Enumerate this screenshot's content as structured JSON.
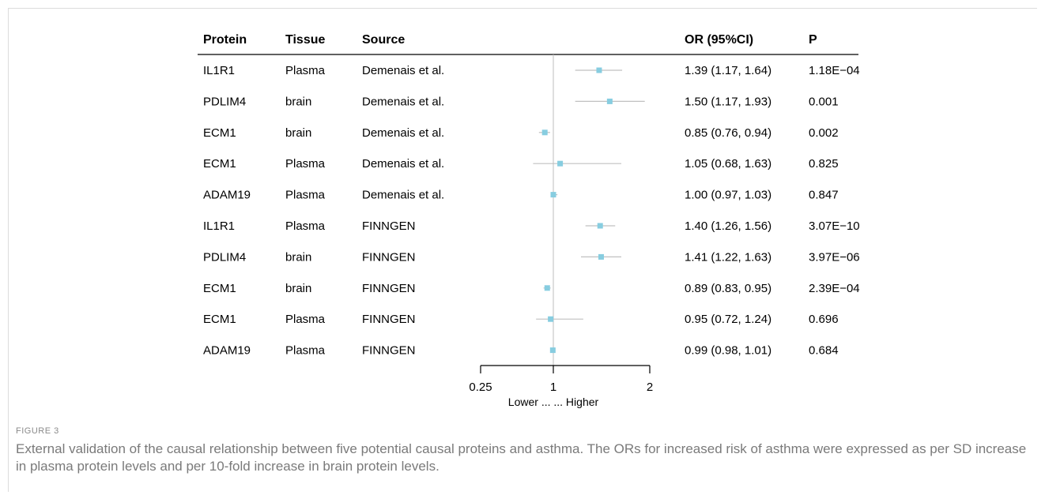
{
  "figure_label": "FIGURE 3",
  "caption": "External validation of the causal relationship between five potential causal proteins and asthma. The ORs for increased risk of asthma were expressed as per SD increase in plasma protein levels and per 10-fold increase in brain protein levels.",
  "colors": {
    "marker": "#87cde0",
    "ci_line": "#c0c0c0",
    "ref_line": "#bdbdbd",
    "axis": "#000000",
    "text": "#000000"
  },
  "chart_data": {
    "type": "forest",
    "headers": {
      "protein": "Protein",
      "tissue": "Tissue",
      "source": "Source",
      "or": "OR (95%CI)",
      "p": "P"
    },
    "x_scale": "log2",
    "xlim": [
      0.25,
      2
    ],
    "x_ticks": [
      0.25,
      1,
      2
    ],
    "x_tick_labels": [
      "0.25",
      "1",
      "2"
    ],
    "x_label": "Lower ...  ... Higher",
    "reference": 1,
    "rows": [
      {
        "protein": "IL1R1",
        "tissue": "Plasma",
        "source": "Demenais et al.",
        "or": 1.39,
        "lo": 1.17,
        "hi": 1.64,
        "or_text": "1.39 (1.17, 1.64)",
        "p": "1.18E−04"
      },
      {
        "protein": "PDLIM4",
        "tissue": "brain",
        "source": "Demenais et al.",
        "or": 1.5,
        "lo": 1.17,
        "hi": 1.93,
        "or_text": "1.50 (1.17, 1.93)",
        "p": "0.001"
      },
      {
        "protein": "ECM1",
        "tissue": "brain",
        "source": "Demenais et al.",
        "or": 0.85,
        "lo": 0.76,
        "hi": 0.94,
        "or_text": "0.85 (0.76, 0.94)",
        "p": "0.002"
      },
      {
        "protein": "ECM1",
        "tissue": "Plasma",
        "source": "Demenais et al.",
        "or": 1.05,
        "lo": 0.68,
        "hi": 1.63,
        "or_text": "1.05 (0.68, 1.63)",
        "p": "0.825"
      },
      {
        "protein": "ADAM19",
        "tissue": "Plasma",
        "source": "Demenais et al.",
        "or": 1.0,
        "lo": 0.97,
        "hi": 1.03,
        "or_text": "1.00 (0.97, 1.03)",
        "p": "0.847"
      },
      {
        "protein": "IL1R1",
        "tissue": "Plasma",
        "source": "FINNGEN",
        "or": 1.4,
        "lo": 1.26,
        "hi": 1.56,
        "or_text": "1.40 (1.26, 1.56)",
        "p": "3.07E−10"
      },
      {
        "protein": "PDLIM4",
        "tissue": "brain",
        "source": "FINNGEN",
        "or": 1.41,
        "lo": 1.22,
        "hi": 1.63,
        "or_text": "1.41 (1.22, 1.63)",
        "p": "3.97E−06"
      },
      {
        "protein": "ECM1",
        "tissue": "brain",
        "source": "FINNGEN",
        "or": 0.89,
        "lo": 0.83,
        "hi": 0.95,
        "or_text": "0.89 (0.83, 0.95)",
        "p": "2.39E−04"
      },
      {
        "protein": "ECM1",
        "tissue": "Plasma",
        "source": "FINNGEN",
        "or": 0.95,
        "lo": 0.72,
        "hi": 1.24,
        "or_text": "0.95 (0.72, 1.24)",
        "p": "0.696"
      },
      {
        "protein": "ADAM19",
        "tissue": "Plasma",
        "source": "FINNGEN",
        "or": 0.99,
        "lo": 0.98,
        "hi": 1.01,
        "or_text": "0.99 (0.98, 1.01)",
        "p": "0.684"
      }
    ]
  }
}
